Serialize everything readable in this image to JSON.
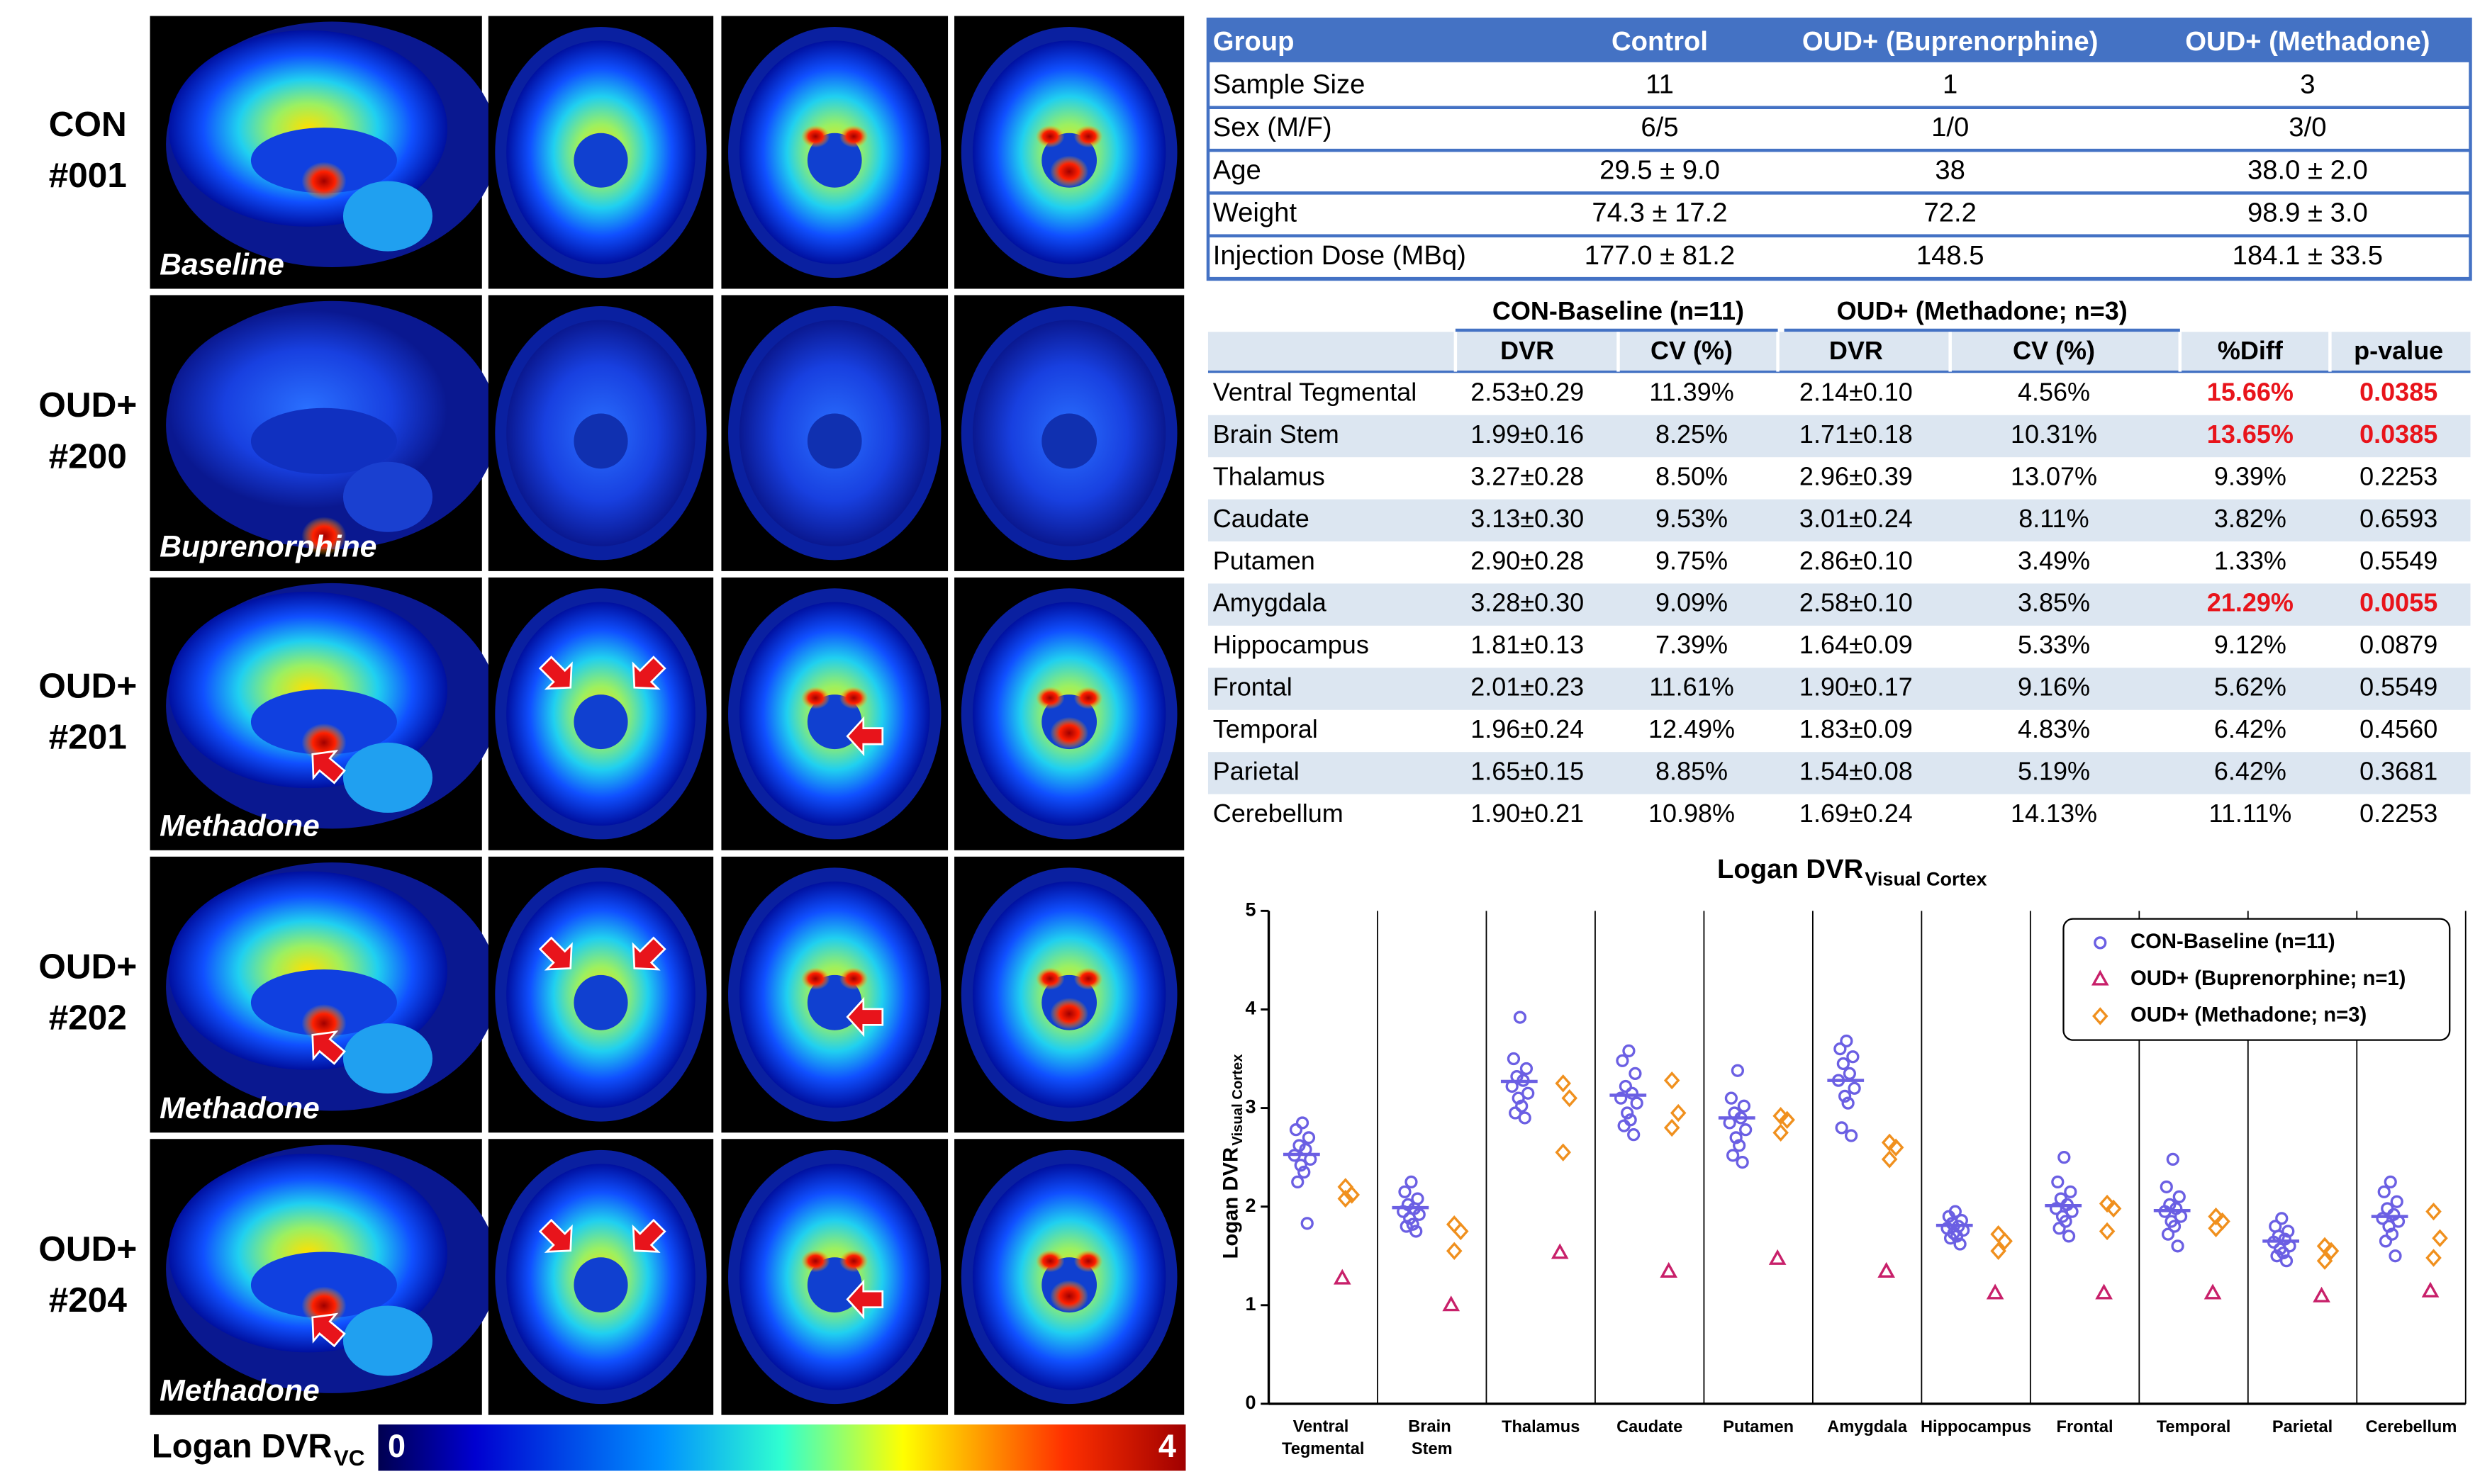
{
  "image_panel": {
    "rows": [
      {
        "group": "CON",
        "id": "#001",
        "caption": "Baseline"
      },
      {
        "group": "OUD+",
        "id": "#200",
        "caption": "Buprenorphine"
      },
      {
        "group": "OUD+",
        "id": "#201",
        "caption": "Methadone"
      },
      {
        "group": "OUD+",
        "id": "#202",
        "caption": "Methadone"
      },
      {
        "group": "OUD+",
        "id": "#204",
        "caption": "Methadone"
      }
    ],
    "colorbar": {
      "label": "Logan DVR",
      "subscript": "VC",
      "min": 0,
      "max": 4
    }
  },
  "demographics": {
    "header": [
      "Group",
      "Control",
      "OUD+ (Buprenorphine)",
      "OUD+ (Methadone)"
    ],
    "rows": [
      [
        "Sample Size",
        "11",
        "1",
        "3"
      ],
      [
        "Sex (M/F)",
        "6/5",
        "1/0",
        "3/0"
      ],
      [
        "Age",
        "29.5 ± 9.0",
        "38",
        "38.0 ± 2.0"
      ],
      [
        "Weight",
        "74.3 ± 17.2",
        "72.2",
        "98.9 ± 3.0"
      ],
      [
        "Injection Dose (MBq)",
        "177.0 ± 81.2",
        "148.5",
        "184.1 ± 33.5"
      ]
    ]
  },
  "dvr_table": {
    "groups": [
      "CON-Baseline (n=11)",
      "OUD+ (Methadone; n=3)"
    ],
    "columns": [
      "DVR",
      "CV (%)",
      "DVR",
      "CV (%)",
      "%Diff",
      "p-value"
    ],
    "highlight_color": "#e8141b",
    "rows": [
      {
        "region": "Ventral Tegmental",
        "cells": [
          "2.53±0.29",
          "11.39%",
          "2.14±0.10",
          "4.56%",
          "15.66%",
          "0.0385"
        ],
        "significant": true
      },
      {
        "region": "Brain Stem",
        "cells": [
          "1.99±0.16",
          "8.25%",
          "1.71±0.18",
          "10.31%",
          "13.65%",
          "0.0385"
        ],
        "significant": true
      },
      {
        "region": "Thalamus",
        "cells": [
          "3.27±0.28",
          "8.50%",
          "2.96±0.39",
          "13.07%",
          "9.39%",
          "0.2253"
        ],
        "significant": false
      },
      {
        "region": "Caudate",
        "cells": [
          "3.13±0.30",
          "9.53%",
          "3.01±0.24",
          "8.11%",
          "3.82%",
          "0.6593"
        ],
        "significant": false
      },
      {
        "region": "Putamen",
        "cells": [
          "2.90±0.28",
          "9.75%",
          "2.86±0.10",
          "3.49%",
          "1.33%",
          "0.5549"
        ],
        "significant": false
      },
      {
        "region": "Amygdala",
        "cells": [
          "3.28±0.30",
          "9.09%",
          "2.58±0.10",
          "3.85%",
          "21.29%",
          "0.0055"
        ],
        "significant": true
      },
      {
        "region": "Hippocampus",
        "cells": [
          "1.81±0.13",
          "7.39%",
          "1.64±0.09",
          "5.33%",
          "9.12%",
          "0.0879"
        ],
        "significant": false
      },
      {
        "region": "Frontal",
        "cells": [
          "2.01±0.23",
          "11.61%",
          "1.90±0.17",
          "9.16%",
          "5.62%",
          "0.5549"
        ],
        "significant": false
      },
      {
        "region": "Temporal",
        "cells": [
          "1.96±0.24",
          "12.49%",
          "1.83±0.09",
          "4.83%",
          "6.42%",
          "0.4560"
        ],
        "significant": false
      },
      {
        "region": "Parietal",
        "cells": [
          "1.65±0.15",
          "8.85%",
          "1.54±0.08",
          "5.19%",
          "6.42%",
          "0.3681"
        ],
        "significant": false
      },
      {
        "region": "Cerebellum",
        "cells": [
          "1.90±0.21",
          "10.98%",
          "1.69±0.24",
          "14.13%",
          "11.11%",
          "0.2253"
        ],
        "significant": false
      }
    ]
  },
  "chart_data": {
    "type": "scatter",
    "title": "Logan DVR",
    "title_subscript": "Visual Cortex",
    "y_label": "Logan DVR",
    "y_label_subscript": "Visual Cortex",
    "categories": [
      "Ventral Tegmental",
      "Brain Stem",
      "Thalamus",
      "Caudate",
      "Putamen",
      "Amygdala",
      "Hippocampus",
      "Frontal",
      "Temporal",
      "Parietal",
      "Cerebellum"
    ],
    "ylim": [
      0,
      5
    ],
    "yticks": [
      0,
      1,
      2,
      3,
      4,
      5
    ],
    "category_dividers": true,
    "legend": "upper right",
    "series": [
      {
        "name": "CON-Baseline (n=11)",
        "color": "#6b5fe3",
        "marker": "circle",
        "values": [
          [
            2.85,
            2.78,
            2.7,
            2.62,
            2.58,
            2.52,
            2.48,
            2.42,
            2.35,
            2.25,
            1.83
          ],
          [
            2.25,
            2.15,
            2.08,
            2.02,
            1.98,
            1.95,
            1.92,
            1.88,
            1.82,
            1.8,
            1.75
          ],
          [
            3.92,
            3.5,
            3.4,
            3.32,
            3.28,
            3.22,
            3.15,
            3.1,
            3.02,
            2.95,
            2.9
          ],
          [
            3.58,
            3.48,
            3.35,
            3.22,
            3.15,
            3.1,
            3.05,
            2.95,
            2.88,
            2.82,
            2.73
          ],
          [
            3.38,
            3.1,
            3.02,
            2.95,
            2.9,
            2.85,
            2.78,
            2.7,
            2.62,
            2.52,
            2.45
          ],
          [
            3.68,
            3.6,
            3.52,
            3.45,
            3.35,
            3.28,
            3.2,
            3.12,
            3.05,
            2.8,
            2.72
          ],
          [
            1.95,
            1.9,
            1.86,
            1.83,
            1.8,
            1.78,
            1.76,
            1.73,
            1.7,
            1.68,
            1.62
          ],
          [
            2.5,
            2.25,
            2.15,
            2.08,
            2.02,
            1.98,
            1.95,
            1.9,
            1.85,
            1.78,
            1.7
          ],
          [
            2.48,
            2.2,
            2.1,
            2.02,
            1.98,
            1.95,
            1.9,
            1.85,
            1.8,
            1.72,
            1.6
          ],
          [
            1.88,
            1.8,
            1.75,
            1.7,
            1.67,
            1.64,
            1.6,
            1.57,
            1.53,
            1.5,
            1.45
          ],
          [
            2.25,
            2.15,
            2.05,
            1.98,
            1.92,
            1.88,
            1.85,
            1.8,
            1.72,
            1.65,
            1.5
          ]
        ],
        "means": [
          2.53,
          1.99,
          3.27,
          3.13,
          2.9,
          3.28,
          1.81,
          2.01,
          1.96,
          1.65,
          1.9
        ]
      },
      {
        "name": "OUD+ (Buprenorphine; n=1)",
        "color": "#c8206a",
        "marker": "triangle",
        "values": [
          [
            1.27
          ],
          [
            1.0
          ],
          [
            1.53
          ],
          [
            1.34
          ],
          [
            1.47
          ],
          [
            1.34
          ],
          [
            1.12
          ],
          [
            1.12
          ],
          [
            1.12
          ],
          [
            1.09
          ],
          [
            1.14
          ]
        ]
      },
      {
        "name": "OUD+ (Methadone; n=3)",
        "color": "#f0901e",
        "marker": "diamond",
        "values": [
          [
            2.2,
            2.12,
            2.08
          ],
          [
            1.82,
            1.75,
            1.55
          ],
          [
            3.25,
            3.1,
            2.55
          ],
          [
            3.28,
            2.95,
            2.8
          ],
          [
            2.92,
            2.88,
            2.75
          ],
          [
            2.65,
            2.6,
            2.48
          ],
          [
            1.72,
            1.65,
            1.55
          ],
          [
            2.03,
            1.98,
            1.75
          ],
          [
            1.9,
            1.85,
            1.78
          ],
          [
            1.6,
            1.55,
            1.45
          ],
          [
            1.95,
            1.68,
            1.48
          ]
        ]
      }
    ]
  }
}
